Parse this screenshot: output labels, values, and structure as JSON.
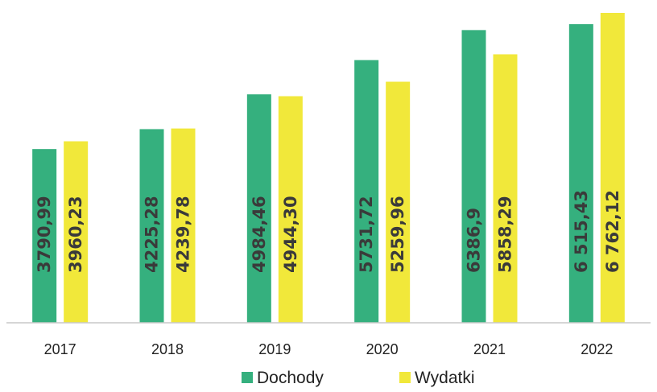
{
  "chart_data": {
    "type": "bar",
    "categories": [
      "2017",
      "2018",
      "2019",
      "2020",
      "2021",
      "2022"
    ],
    "series": [
      {
        "name": "Dochody",
        "color": "#35b07e",
        "values": [
          3790.99,
          4225.28,
          4984.46,
          5731.72,
          6386.9,
          6515.43
        ],
        "labels": [
          "3790,99",
          "4225,28",
          "4984,46",
          "5731,72",
          "6386,9",
          "6 515,43"
        ]
      },
      {
        "name": "Wydatki",
        "color": "#f1e83a",
        "values": [
          3960.23,
          4239.78,
          4944.3,
          5259.96,
          5858.29,
          6762.12
        ],
        "labels": [
          "3960,23",
          "4239,78",
          "4944,30",
          "5259,96",
          "5858,29",
          "6 762,12"
        ]
      }
    ],
    "ylim": [
      0,
      6762.12
    ],
    "grid": false,
    "legend": "bottom",
    "data_labels": "inside-rotated"
  }
}
